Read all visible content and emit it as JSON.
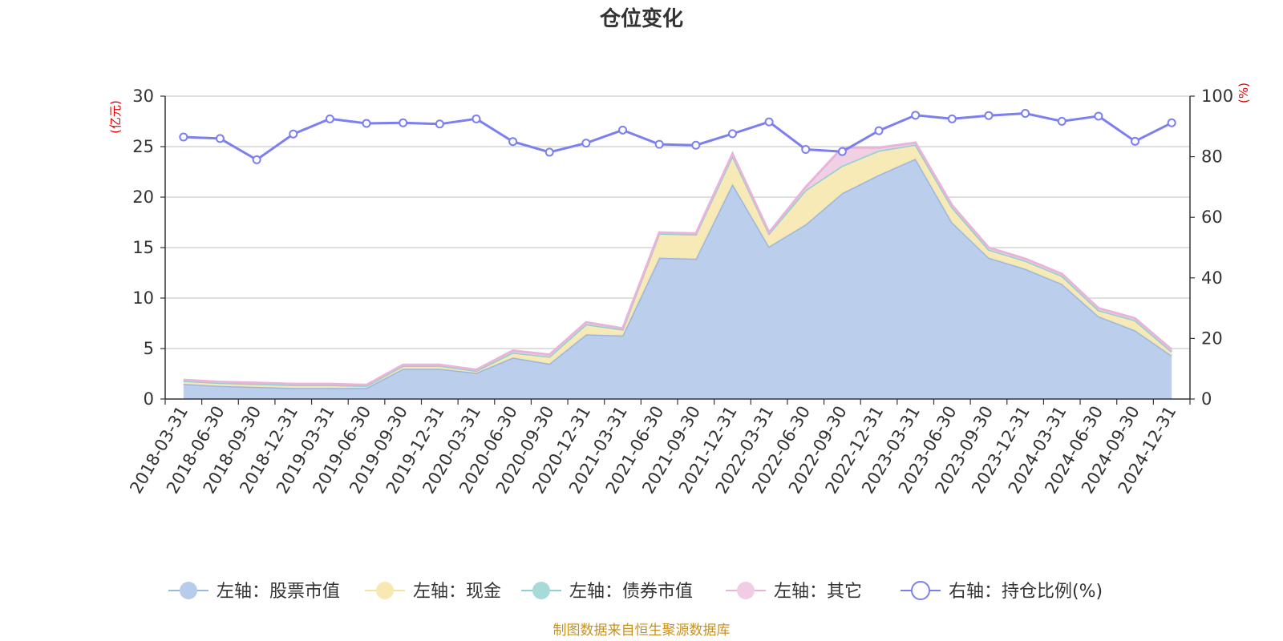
{
  "chart_data": {
    "type": "area",
    "title": "仓位变化",
    "left_axis_unit": "(亿元)",
    "right_axis_unit": "(%)",
    "left_ylim": [
      0,
      30
    ],
    "left_ticks": [
      "0",
      "5",
      "10",
      "15",
      "20",
      "25",
      "30"
    ],
    "right_ylim": [
      0,
      100
    ],
    "right_ticks": [
      "0",
      "20",
      "40",
      "60",
      "80",
      "100"
    ],
    "categories": [
      "2018-03-31",
      "2018-06-30",
      "2018-09-30",
      "2018-12-31",
      "2019-03-31",
      "2019-06-30",
      "2019-09-30",
      "2019-12-31",
      "2020-03-31",
      "2020-06-30",
      "2020-09-30",
      "2020-12-31",
      "2021-03-31",
      "2021-06-30",
      "2021-09-30",
      "2021-12-31",
      "2022-03-31",
      "2022-06-30",
      "2022-09-30",
      "2022-12-31",
      "2023-03-31",
      "2023-06-30",
      "2023-09-30",
      "2023-12-31",
      "2024-03-31",
      "2024-06-30",
      "2024-09-30",
      "2024-12-31"
    ],
    "series": [
      {
        "name": "左轴：股票市值",
        "axis": "left",
        "stack": true,
        "color": "#9bb6e0",
        "fill": "#b7cceb",
        "values": [
          1.5,
          1.3,
          1.2,
          1.1,
          1.1,
          1.1,
          3.0,
          3.0,
          2.6,
          4.1,
          3.5,
          6.4,
          6.3,
          14.0,
          13.9,
          21.3,
          15.1,
          17.3,
          20.4,
          22.2,
          23.8,
          17.5,
          14.0,
          12.9,
          11.4,
          8.2,
          6.8,
          4.3
        ]
      },
      {
        "name": "左轴：现金",
        "axis": "left",
        "stack": true,
        "color": "#f6e3a1",
        "fill": "#f8e9b3",
        "values": [
          0.3,
          0.3,
          0.3,
          0.3,
          0.3,
          0.2,
          0.3,
          0.3,
          0.2,
          0.5,
          0.7,
          1.0,
          0.6,
          2.4,
          2.4,
          2.8,
          1.3,
          3.4,
          2.7,
          2.4,
          1.4,
          1.5,
          0.8,
          0.8,
          0.8,
          0.6,
          1.0,
          0.4
        ]
      },
      {
        "name": "左轴：债券市值",
        "axis": "left",
        "stack": true,
        "color": "#8fd0d0",
        "fill": "#a8dada",
        "values": [
          0,
          0,
          0,
          0,
          0,
          0,
          0,
          0,
          0,
          0,
          0,
          0,
          0,
          0,
          0,
          0,
          0,
          0,
          0,
          0,
          0,
          0,
          0,
          0,
          0,
          0,
          0,
          0
        ]
      },
      {
        "name": "左轴：其它",
        "axis": "left",
        "stack": true,
        "color": "#e8b4d8",
        "fill": "#f0cde3",
        "values": [
          0.1,
          0.1,
          0.1,
          0.1,
          0.1,
          0.1,
          0.1,
          0.1,
          0.1,
          0.2,
          0.2,
          0.2,
          0.1,
          0.1,
          0.1,
          0.2,
          0.1,
          0.3,
          1.8,
          0.3,
          0.2,
          0.2,
          0.2,
          0.2,
          0.2,
          0.2,
          0.2,
          0.2
        ]
      },
      {
        "name": "右轴：持仓比例(%)",
        "axis": "right",
        "stack": false,
        "color": "#7b7ff0",
        "values": [
          86.5,
          86,
          79,
          87.5,
          92.5,
          91,
          91.2,
          90.8,
          92.5,
          85,
          81.5,
          84.5,
          88.8,
          84.1,
          83.8,
          87.6,
          91.5,
          82.4,
          81.7,
          88.6,
          93.7,
          92.5,
          93.6,
          94.3,
          91.7,
          93.4,
          85.1,
          91.2
        ]
      }
    ],
    "legend_position": "bottom",
    "source_note": "制图数据来自恒生聚源数据库"
  }
}
